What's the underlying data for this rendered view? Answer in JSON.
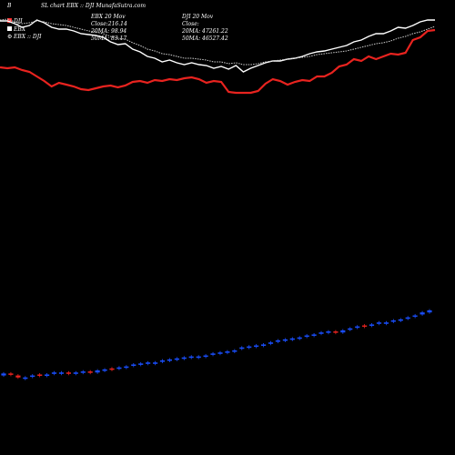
{
  "header": {
    "left_marker": "B",
    "title": "SL chart EBX :: DJI MunafaSutra.com"
  },
  "legend": {
    "items": [
      {
        "label": "DJI",
        "color": "#ff2a2a",
        "shape": "square"
      },
      {
        "label": "EBX",
        "color": "#ffffff",
        "shape": "square"
      },
      {
        "label": "EBX :: DJI",
        "color": "#ffffff",
        "shape": "gear"
      }
    ]
  },
  "info_left": {
    "line1": "EBX 20 Mov",
    "line2": "Close:216.14",
    "line3": "20MA: 98.94",
    "line4": "50MA: 83.17"
  },
  "info_right": {
    "line1": "DJI 20 Mov",
    "line2": "Close:",
    "line3": "20MA: 47261.22",
    "line4": "50MA: 46527.42"
  },
  "colors": {
    "background": "#000000",
    "dji_line": "#e8231f",
    "ebx_line": "#ffffff",
    "ratio_line": "#cfcfcf",
    "candle_up": "#1a4fff",
    "candle_down": "#e8231f"
  },
  "chart_data": [
    {
      "type": "line",
      "x": [
        1,
        2,
        3,
        4,
        5,
        6,
        7,
        8,
        9,
        10,
        11,
        12,
        13,
        14,
        15,
        16,
        17,
        18,
        19,
        20,
        21,
        22,
        23,
        24,
        25,
        26,
        27,
        28,
        29,
        30,
        31,
        32,
        33,
        34,
        35,
        36,
        37,
        38,
        39,
        40,
        41,
        42,
        43,
        44,
        45,
        46,
        47,
        48,
        49,
        50,
        51,
        52,
        53,
        54,
        55,
        56,
        57,
        58,
        59,
        60
      ],
      "series": [
        {
          "name": "DJI",
          "values": [
            176,
            175,
            176,
            173,
            171,
            166,
            161,
            155,
            159,
            157,
            155,
            152,
            151,
            153,
            155,
            156,
            154,
            156,
            160,
            161,
            159,
            162,
            161,
            163,
            162,
            164,
            165,
            163,
            159,
            161,
            160,
            149,
            148,
            148,
            148,
            150,
            158,
            163,
            161,
            157,
            160,
            162,
            161,
            166,
            166,
            170,
            177,
            179,
            185,
            183,
            188,
            185,
            188,
            191,
            190,
            192,
            206,
            209,
            216,
            217
          ]
        },
        {
          "name": "EBX",
          "values": [
            227,
            227,
            224,
            220,
            222,
            228,
            225,
            220,
            218,
            218,
            216,
            213,
            212,
            211,
            209,
            204,
            201,
            202,
            196,
            193,
            188,
            186,
            182,
            184,
            181,
            179,
            181,
            179,
            178,
            175,
            177,
            174,
            178,
            171,
            175,
            178,
            181,
            183,
            183,
            185,
            186,
            188,
            191,
            193,
            194,
            196,
            198,
            200,
            204,
            206,
            210,
            213,
            213,
            216,
            220,
            219,
            222,
            226,
            228,
            228
          ]
        },
        {
          "name": "EBX :: DJI",
          "values": [
            228,
            229,
            226,
            224,
            225,
            227,
            226,
            224,
            223,
            222,
            220,
            218,
            216,
            215,
            213,
            210,
            208,
            207,
            203,
            200,
            196,
            194,
            191,
            190,
            188,
            186,
            186,
            185,
            184,
            182,
            182,
            180,
            181,
            179,
            179,
            180,
            182,
            183,
            184,
            185,
            186,
            187,
            188,
            190,
            191,
            192,
            193,
            194,
            196,
            198,
            200,
            202,
            203,
            205,
            208,
            210,
            213,
            215,
            218,
            221
          ]
        }
      ]
    },
    {
      "type": "bar",
      "categories": [
        1,
        2,
        3,
        4,
        5,
        6,
        7,
        8,
        9,
        10,
        11,
        12,
        13,
        14,
        15,
        16,
        17,
        18,
        19,
        20,
        21,
        22,
        23,
        24,
        25,
        26,
        27,
        28,
        29,
        30,
        31,
        32,
        33,
        34,
        35,
        36,
        37,
        38,
        39,
        40,
        41,
        42,
        43,
        44,
        45,
        46,
        47,
        48,
        49,
        50,
        51,
        52,
        53,
        54,
        55,
        56,
        57,
        58,
        59,
        60
      ],
      "series": [
        {
          "values": [
            14,
            16,
            14,
            12,
            13,
            15,
            14,
            16,
            17,
            17,
            16,
            18,
            18,
            17,
            19,
            21,
            21,
            22,
            24,
            25,
            26,
            27,
            28,
            29,
            30,
            31,
            33,
            32,
            33,
            35,
            37,
            38,
            39,
            41,
            43,
            44,
            45,
            46,
            48,
            49,
            50,
            51,
            53,
            54,
            56,
            58,
            58,
            57,
            60,
            62,
            64,
            64,
            66,
            67,
            68,
            70,
            71,
            73,
            75,
            77
          ]
        },
        {
          "values": [
            16,
            15,
            12,
            12,
            14,
            14,
            15,
            17,
            17,
            16,
            17,
            18,
            17,
            19,
            20,
            20,
            22,
            23,
            25,
            26,
            27,
            27,
            29,
            30,
            31,
            32,
            33,
            33,
            34,
            36,
            37,
            38,
            39,
            42,
            43,
            44,
            45,
            47,
            49,
            50,
            51,
            52,
            54,
            55,
            57,
            58,
            57,
            59,
            61,
            63,
            63,
            65,
            67,
            67,
            69,
            70,
            72,
            74,
            77,
            79
          ]
        }
      ]
    }
  ]
}
